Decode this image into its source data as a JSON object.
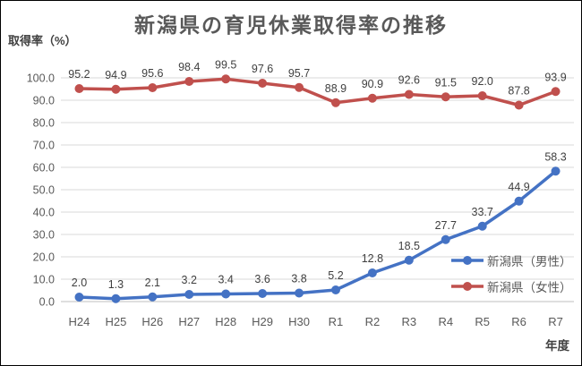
{
  "chart_data": {
    "type": "line",
    "title": "新潟県の育児休業取得率の推移",
    "ylabel": "取得率（%）",
    "xlabel": "年度",
    "categories": [
      "H24",
      "H25",
      "H26",
      "H27",
      "H28",
      "H29",
      "H30",
      "R1",
      "R2",
      "R3",
      "R4",
      "R5",
      "R6",
      "R7"
    ],
    "series": [
      {
        "name": "新潟県（男性）",
        "color": "#4472C4",
        "values": [
          2.0,
          1.3,
          2.1,
          3.2,
          3.4,
          3.6,
          3.8,
          5.2,
          12.8,
          18.5,
          27.7,
          33.7,
          44.9,
          58.3
        ]
      },
      {
        "name": "新潟県（女性）",
        "color": "#C0504D",
        "values": [
          95.2,
          94.9,
          95.6,
          98.4,
          99.5,
          97.6,
          95.7,
          88.9,
          90.9,
          92.6,
          91.5,
          92.0,
          87.8,
          93.9
        ]
      }
    ],
    "ylim": [
      0,
      100
    ],
    "ytick_step": 10,
    "ytick_labels": [
      "0.0",
      "10.0",
      "20.0",
      "30.0",
      "40.0",
      "50.0",
      "60.0",
      "70.0",
      "80.0",
      "90.0",
      "100.0"
    ],
    "grid": true,
    "gridline_color": "#D9D9D9",
    "axis_line_color": "#BFBFBF",
    "label_color": "#3f3f3f",
    "legend_position": "inside-lower-right",
    "data_labels_shown": true
  }
}
